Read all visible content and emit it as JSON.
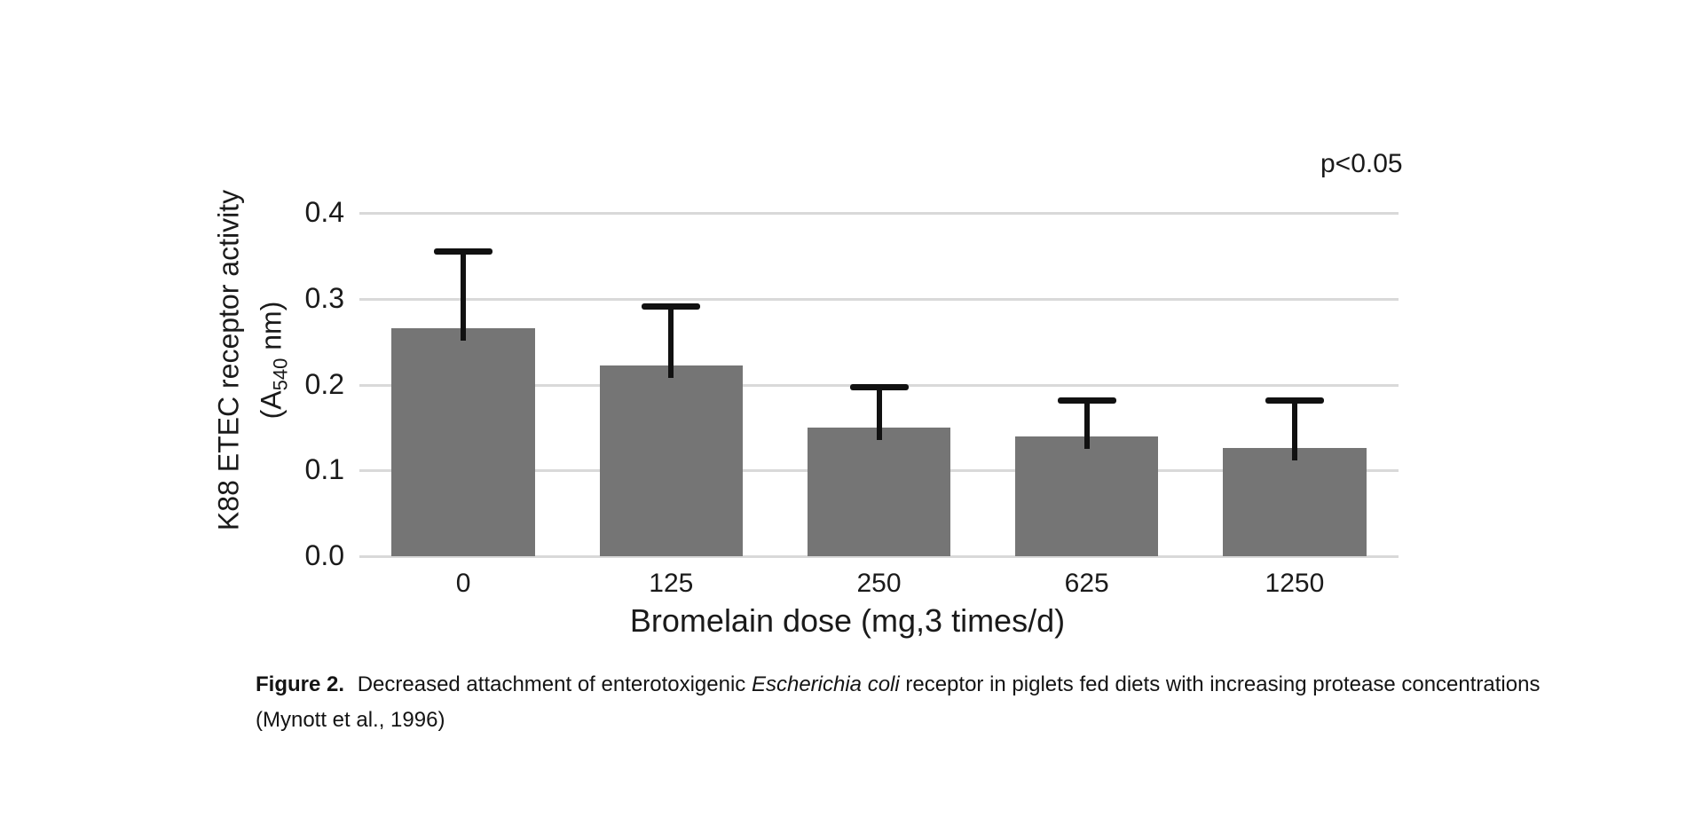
{
  "chart_data": {
    "type": "bar",
    "title": "",
    "categories": [
      "0",
      "125",
      "250",
      "625",
      "1250"
    ],
    "values": [
      0.266,
      0.222,
      0.15,
      0.14,
      0.126
    ],
    "errors_upper": [
      0.09,
      0.069,
      0.047,
      0.042,
      0.056
    ],
    "xlabel": "Bromelain dose (mg,3 times/d)",
    "ylabel": "K88 ETEC receptor activity (A540 nm)",
    "ylabel_line1": "K88 ETEC receptor activity",
    "ylabel_line2_pre": "(A",
    "ylabel_line2_sub": "540",
    "ylabel_line2_post": " nm)",
    "ylim": [
      0,
      0.4
    ],
    "yticks": [
      0,
      0.1,
      0.2,
      0.3,
      0.4
    ],
    "ytick_labels": [
      "0.0",
      "0.1",
      "0.2",
      "0.3",
      "0.4"
    ],
    "annotation": "p<0.05",
    "grid": "horizontal",
    "legend": "none",
    "bar_width_frac": 0.69,
    "colors": {
      "bar": "#757575",
      "gridline": "#d9d9d9",
      "error_bar": "#111111",
      "text": "#1a1a1a"
    }
  },
  "caption": {
    "label": "Figure 2.",
    "line1_text": " Decreased attachment of enterotoxigenic ",
    "line1_italic": "Escherichia coli",
    "line1_end": " receptor in piglets fed diets with increasing protease concentrations",
    "line2": "(Mynott et al., 1996)"
  }
}
